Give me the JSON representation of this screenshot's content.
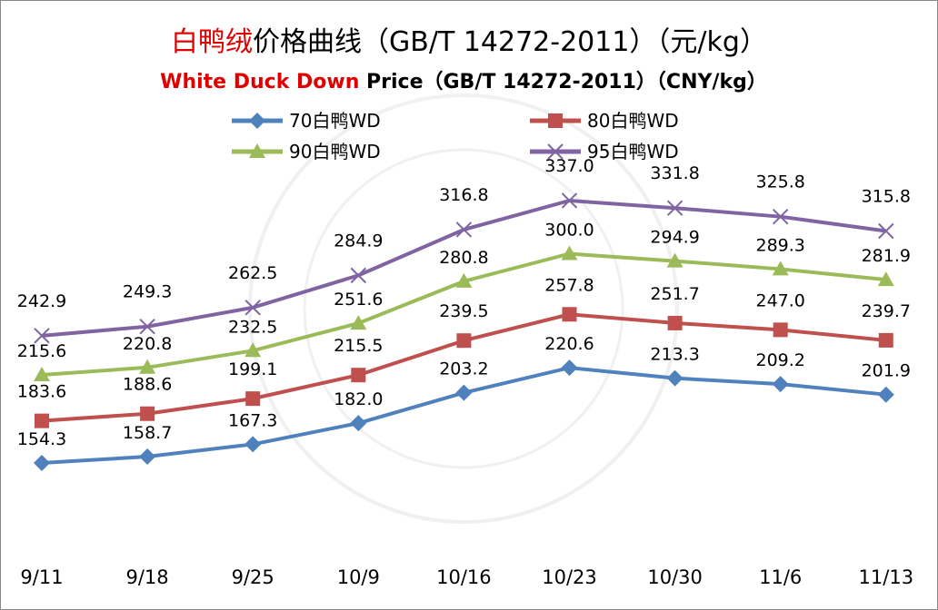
{
  "chart_data": {
    "type": "line",
    "title_red": "白鸭绒",
    "title_rest": "价格曲线（GB/T 14272-2011）（元/kg）",
    "subtitle_red": "White Duck Down",
    "subtitle_rest": " Price（GB/T 14272-2011）（CNY/kg）",
    "categories": [
      "9/11",
      "9/18",
      "9/25",
      "10/9",
      "10/16",
      "10/23",
      "10/30",
      "11/6",
      "11/13"
    ],
    "series": [
      {
        "name": "70白鸭WD",
        "color": "#4F81BD",
        "marker": "diamond",
        "values": [
          154.3,
          158.7,
          167.3,
          182.0,
          203.2,
          220.6,
          213.3,
          209.2,
          201.9
        ]
      },
      {
        "name": "80白鸭WD",
        "color": "#C0504D",
        "marker": "square",
        "values": [
          183.6,
          188.6,
          199.1,
          215.5,
          239.5,
          257.8,
          251.7,
          247.0,
          239.7
        ]
      },
      {
        "name": "90白鸭WD",
        "color": "#9BBB59",
        "marker": "triangle",
        "values": [
          215.6,
          220.8,
          232.5,
          251.6,
          280.8,
          300.0,
          294.9,
          289.3,
          281.9
        ]
      },
      {
        "name": "95白鸭WD",
        "color": "#8064A2",
        "marker": "x",
        "values": [
          242.9,
          249.3,
          262.5,
          284.9,
          316.8,
          337.0,
          331.8,
          325.8,
          315.8
        ]
      }
    ],
    "legend_position": "top",
    "grid": false,
    "y_axis_visible": false
  }
}
